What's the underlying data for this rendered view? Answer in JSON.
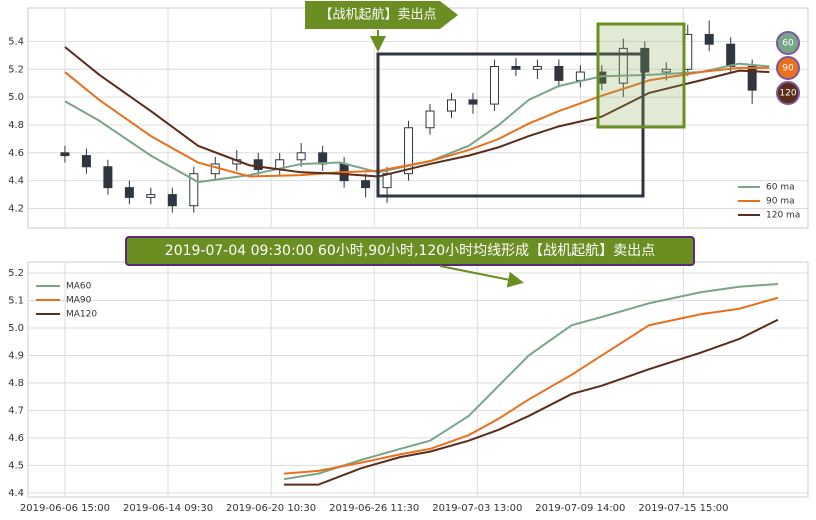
{
  "chart_data": [
    {
      "type": "candlestick",
      "annotation": "【战机起航】卖出点",
      "xlim": [
        -8.6,
        173
      ],
      "xticks": [
        0,
        24,
        48,
        72,
        96,
        120,
        144
      ],
      "ylim": [
        4.06,
        5.64
      ],
      "yticks": [
        4.2,
        4.4,
        4.6,
        4.8,
        {
          "value": 5,
          "label": "5.0"
        },
        5.2,
        5.4
      ],
      "grid": true,
      "legend": "lower right",
      "candles": {
        "color": "#2f3640",
        "x": [
          0,
          5,
          10,
          15,
          20,
          25,
          30,
          35,
          40,
          45,
          50,
          55,
          60,
          65,
          70,
          75,
          80,
          85,
          90,
          95,
          100,
          105,
          110,
          115,
          120,
          125,
          130,
          135,
          140,
          145,
          150,
          155,
          160
        ],
        "open": [
          4.6,
          4.58,
          4.5,
          4.35,
          4.28,
          4.3,
          4.22,
          4.45,
          4.52,
          4.55,
          4.48,
          4.55,
          4.6,
          4.52,
          4.4,
          4.35,
          4.45,
          4.78,
          4.9,
          4.98,
          4.95,
          5.22,
          5.2,
          5.22,
          5.12,
          5.18,
          5.1,
          5.35,
          5.18,
          5.2,
          5.45,
          5.38,
          5.22
        ],
        "high": [
          4.65,
          4.63,
          4.55,
          4.4,
          4.35,
          4.35,
          4.5,
          4.57,
          4.62,
          4.6,
          4.6,
          4.67,
          4.65,
          4.57,
          4.45,
          4.5,
          4.83,
          4.95,
          5.03,
          5.03,
          5.27,
          5.28,
          5.27,
          5.27,
          5.23,
          5.23,
          5.42,
          5.4,
          5.25,
          5.52,
          5.55,
          5.43,
          5.27
        ],
        "low": [
          4.53,
          4.45,
          4.3,
          4.23,
          4.23,
          4.17,
          4.17,
          4.4,
          4.47,
          4.43,
          4.43,
          4.5,
          4.47,
          4.35,
          4.28,
          4.24,
          4.4,
          4.73,
          4.85,
          4.88,
          4.9,
          5.15,
          5.13,
          5.07,
          5.07,
          5.05,
          5.0,
          5.13,
          5.12,
          5.15,
          5.33,
          5.17,
          4.95
        ],
        "close": [
          4.58,
          4.5,
          4.35,
          4.28,
          4.3,
          4.22,
          4.45,
          4.52,
          4.55,
          4.48,
          4.55,
          4.6,
          4.52,
          4.4,
          4.35,
          4.45,
          4.78,
          4.9,
          4.98,
          4.95,
          5.22,
          5.2,
          5.22,
          5.12,
          5.18,
          5.1,
          5.35,
          5.18,
          5.2,
          5.45,
          5.38,
          5.22,
          5.05
        ]
      },
      "x": [
        0,
        8,
        20,
        31,
        43,
        55,
        64,
        73,
        85,
        94,
        101,
        108,
        115,
        125,
        136,
        148,
        157,
        164
      ],
      "series": [
        {
          "name": "60 ma",
          "badge": "60",
          "color": "#7aa58a",
          "values": [
            4.97,
            4.83,
            4.58,
            4.39,
            4.44,
            4.52,
            4.53,
            4.46,
            4.54,
            4.65,
            4.8,
            4.98,
            5.08,
            5.15,
            5.16,
            5.18,
            5.24,
            5.22
          ]
        },
        {
          "name": "90 ma",
          "badge": "90",
          "color": "#e8701e",
          "values": [
            5.18,
            4.98,
            4.72,
            4.53,
            4.43,
            4.44,
            4.46,
            4.47,
            4.54,
            4.62,
            4.7,
            4.81,
            4.9,
            5.01,
            5.12,
            5.18,
            5.21,
            5.21
          ]
        },
        {
          "name": "120 ma",
          "badge": "120",
          "color": "#5b2c1a",
          "values": [
            5.36,
            5.16,
            4.9,
            4.65,
            4.51,
            4.46,
            4.45,
            4.43,
            4.52,
            4.58,
            4.64,
            4.72,
            4.79,
            4.86,
            5.03,
            5.12,
            5.19,
            5.18
          ]
        }
      ]
    },
    {
      "type": "line",
      "annotation": "2019-07-04 09:30:00 60小时,90小时,120小时均线形成【战机起航】卖出点",
      "xlim": [
        -8.6,
        173
      ],
      "xticks": [
        {
          "value": 0,
          "label": "2019-06-06 15:00"
        },
        {
          "value": 24,
          "label": "2019-06-14 09:30"
        },
        {
          "value": 48,
          "label": "2019-06-20 10:30"
        },
        {
          "value": 72,
          "label": "2019-06-26 11:30"
        },
        {
          "value": 96,
          "label": "2019-07-03 13:00"
        },
        {
          "value": 120,
          "label": "2019-07-09 14:00"
        },
        {
          "value": 144,
          "label": "2019-07-15 15:00"
        }
      ],
      "ylim": [
        4.385,
        5.24
      ],
      "yticks": [
        4.4,
        4.5,
        4.6,
        4.7,
        4.8,
        4.9,
        {
          "value": 5,
          "label": "5.0"
        },
        5.1,
        5.2
      ],
      "grid": true,
      "legend": "upper left",
      "x": [
        51,
        59,
        69,
        78,
        85,
        94,
        101,
        108,
        118,
        125,
        136,
        148,
        157,
        166
      ],
      "series": [
        {
          "name": "MA60",
          "color": "#7aa58a",
          "values": [
            4.45,
            4.47,
            4.52,
            4.56,
            4.59,
            4.68,
            4.79,
            4.9,
            5.01,
            5.04,
            5.09,
            5.13,
            5.15,
            5.16
          ]
        },
        {
          "name": "MA90",
          "color": "#e8701e",
          "values": [
            4.47,
            4.48,
            4.51,
            4.54,
            4.56,
            4.61,
            4.67,
            4.74,
            4.83,
            4.9,
            5.01,
            5.05,
            5.07,
            5.11
          ]
        },
        {
          "name": "MA120",
          "color": "#5b2c1a",
          "values": [
            4.43,
            4.43,
            4.49,
            4.53,
            4.55,
            4.59,
            4.63,
            4.68,
            4.76,
            4.79,
            4.85,
            4.91,
            4.96,
            5.03
          ]
        }
      ]
    }
  ]
}
